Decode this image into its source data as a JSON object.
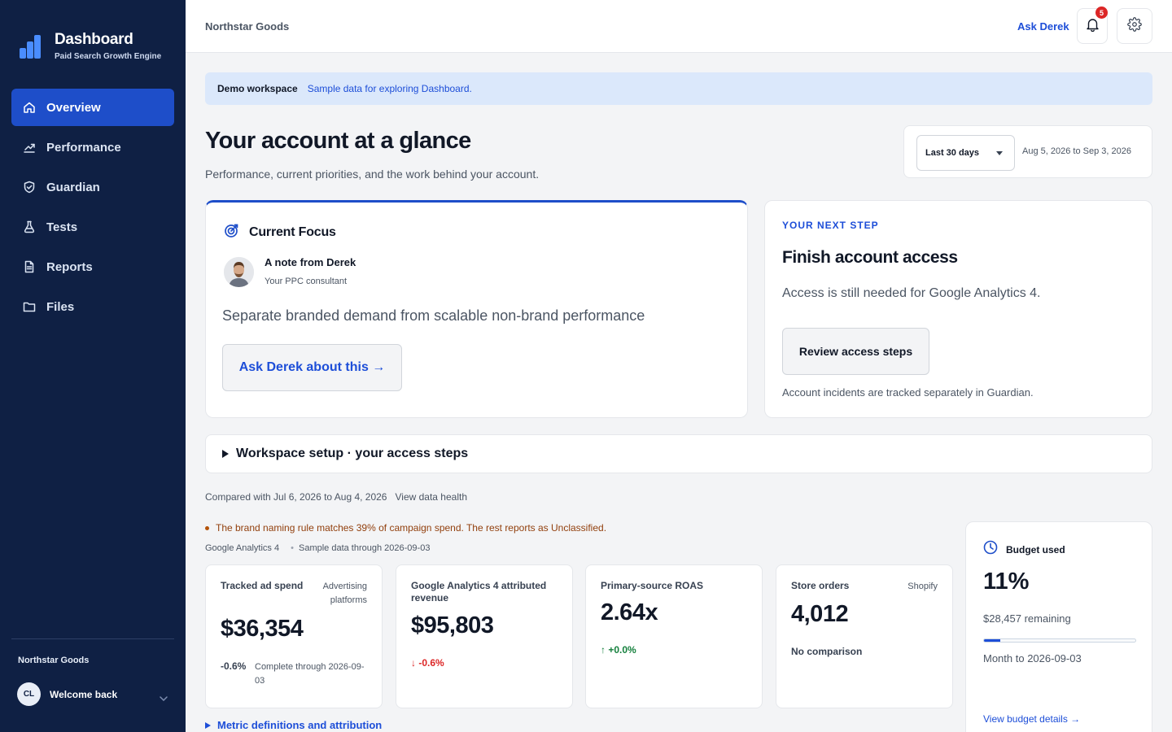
{
  "brand": {
    "title": "Dashboard",
    "subtitle": "Paid Search Growth Engine",
    "accent": "#4a8dff"
  },
  "sidebar": {
    "items": [
      {
        "label": "Overview",
        "icon": "home-icon",
        "active": true
      },
      {
        "label": "Performance",
        "icon": "trending-up-icon"
      },
      {
        "label": "Guardian",
        "icon": "shield-check-icon"
      },
      {
        "label": "Tests",
        "icon": "flask-icon"
      },
      {
        "label": "Reports",
        "icon": "document-icon"
      },
      {
        "label": "Files",
        "icon": "folder-icon"
      }
    ],
    "org": "Northstar Goods",
    "user": {
      "initials": "CL",
      "greeting": "Welcome back"
    }
  },
  "header": {
    "org": "Northstar Goods",
    "ask_link": "Ask Derek",
    "notifications_count": "5"
  },
  "banner": {
    "title": "Demo workspace",
    "text": "Sample data for exploring Dashboard."
  },
  "page": {
    "title": "Your account at a glance",
    "subtitle": "Performance, current priorities, and the work behind your account."
  },
  "date_filter": {
    "selected": "Last 30 days",
    "range": "Aug 5, 2026 to Sep 3, 2026"
  },
  "focus": {
    "heading": "Current Focus",
    "note_title": "A note from Derek",
    "note_sub": "Your PPC consultant",
    "text": "Separate branded demand from scalable non-brand performance",
    "button": "Ask Derek about this →"
  },
  "next_step": {
    "eyebrow": "YOUR NEXT STEP",
    "title": "Finish account access",
    "text": "Access is still needed for Google Analytics 4.",
    "button": "Review access steps",
    "footnote": "Account incidents are tracked separately in Guardian."
  },
  "setup": {
    "label": "Workspace setup · your access steps"
  },
  "comparison": {
    "text": "Compared with Jul 6, 2026 to Aug 4, 2026",
    "link": "View data health"
  },
  "warning": {
    "text": "The brand naming rule matches 39% of campaign spend. The rest reports as Unclassified."
  },
  "sources": {
    "primary": "Google Analytics 4",
    "secondary": "Sample data through 2026-09-03"
  },
  "metrics": [
    {
      "label": "Tracked ad spend",
      "source": "Advertising platforms",
      "value": "$36,354",
      "delta": "-0.6%",
      "note": "Complete through 2026-09-03"
    },
    {
      "label": "Google Analytics 4 attributed revenue",
      "source": "",
      "value": "$95,803",
      "delta": "↓ -0.6%"
    },
    {
      "label": "Primary-source ROAS",
      "source": "",
      "value": "2.64x",
      "delta": "↑ +0.0%"
    },
    {
      "label": "Store orders",
      "source": "Shopify",
      "value": "4,012",
      "delta": "No comparison"
    }
  ],
  "budget": {
    "title": "Budget used",
    "percent": "11%",
    "fill_fraction": 0.11,
    "remaining": "$28,457 remaining",
    "period": "Month to 2026-09-03",
    "link": "View budget details →"
  },
  "metric_definitions": {
    "label": "Metric definitions and attribution"
  }
}
